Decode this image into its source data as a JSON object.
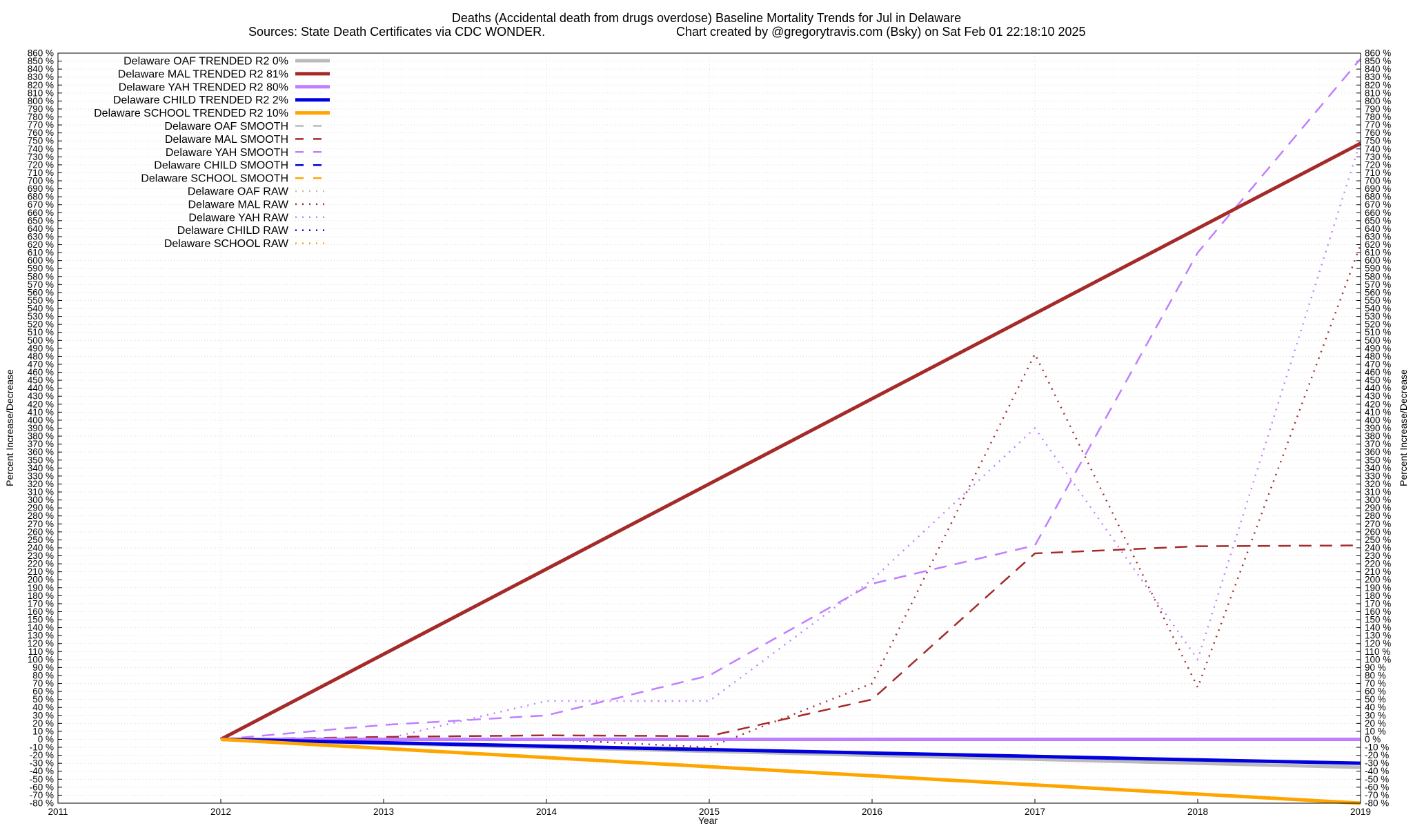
{
  "chart_data": {
    "type": "line",
    "title": "Deaths (Accidental death from drugs overdose)  Baseline Mortality Trends for Jul in Delaware",
    "subtitle_left": "Sources: State Death Certificates via CDC WONDER.",
    "subtitle_right": "Chart created by @gregorytravis.com (Bsky) on Sat Feb 01 22:18:10 2025",
    "xlabel": "Year",
    "ylabel": "Percent Increase/Decrease",
    "xlim": [
      2011,
      2019
    ],
    "ylim": [
      -80,
      860
    ],
    "y_tick_step": 10,
    "y_tick_suffix": " %",
    "x_ticks": [
      "2011",
      "2012",
      "2013",
      "2014",
      "2015",
      "2016",
      "2017",
      "2018",
      "2019"
    ],
    "grid": true,
    "legend_position": "top-left",
    "series": [
      {
        "name": "Delaware OAF TRENDED R2  0%",
        "style": "solid",
        "color": "#bbbbbb",
        "width": 5,
        "x": [
          2012,
          2019
        ],
        "y": [
          0,
          -35
        ]
      },
      {
        "name": "Delaware MAL TRENDED R2  81%",
        "style": "solid",
        "color": "#a52a2a",
        "width": 5,
        "x": [
          2012,
          2019
        ],
        "y": [
          0,
          747
        ]
      },
      {
        "name": "Delaware YAH TRENDED R2  80%",
        "style": "solid",
        "color": "#bf7fff",
        "width": 5,
        "x": [
          2012,
          2019
        ],
        "y": [
          0,
          0
        ]
      },
      {
        "name": "Delaware CHILD TRENDED R2  2%",
        "style": "solid",
        "color": "#0000e0",
        "width": 5,
        "x": [
          2012,
          2019
        ],
        "y": [
          0,
          -30
        ]
      },
      {
        "name": "Delaware SCHOOL TRENDED R2  10%",
        "style": "solid",
        "color": "#ffa500",
        "width": 5,
        "x": [
          2012,
          2019
        ],
        "y": [
          0,
          -80
        ]
      },
      {
        "name": "Delaware OAF SMOOTH",
        "style": "dash",
        "color": "#bbbbbb",
        "width": 2.5,
        "x": [
          2012,
          2019
        ],
        "y": [
          0,
          0
        ]
      },
      {
        "name": "Delaware MAL SMOOTH",
        "style": "dash",
        "color": "#a52a2a",
        "width": 2.5,
        "x": [
          2012,
          2013,
          2014,
          2015,
          2016,
          2017,
          2018,
          2019
        ],
        "y": [
          0,
          3,
          5,
          4,
          50,
          233,
          242,
          243
        ]
      },
      {
        "name": "Delaware YAH SMOOTH",
        "style": "dash",
        "color": "#bf7fff",
        "width": 2.5,
        "x": [
          2012,
          2013,
          2014,
          2015,
          2016,
          2017,
          2018,
          2019
        ],
        "y": [
          0,
          18,
          30,
          80,
          195,
          243,
          610,
          853
        ]
      },
      {
        "name": "Delaware CHILD SMOOTH",
        "style": "dash",
        "color": "#0000e0",
        "width": 2.5,
        "x": [
          2012,
          2019
        ],
        "y": [
          0,
          0
        ]
      },
      {
        "name": "Delaware SCHOOL SMOOTH",
        "style": "dash",
        "color": "#ffa500",
        "width": 2.5,
        "x": [
          2012,
          2019
        ],
        "y": [
          0,
          0
        ]
      },
      {
        "name": "Delaware OAF RAW",
        "style": "dot",
        "color": "#bbbbbb",
        "width": 2.5,
        "x": [
          2012,
          2019
        ],
        "y": [
          0,
          0
        ]
      },
      {
        "name": "Delaware MAL RAW",
        "style": "dot",
        "color": "#a52a2a",
        "width": 2.5,
        "x": [
          2012,
          2013,
          2014,
          2015,
          2016,
          2017,
          2018,
          2019
        ],
        "y": [
          0,
          0,
          0,
          -10,
          70,
          483,
          65,
          620
        ]
      },
      {
        "name": "Delaware YAH RAW",
        "style": "dot",
        "color": "#bf7fff",
        "width": 2.5,
        "x": [
          2012,
          2013,
          2014,
          2014.5,
          2015,
          2016,
          2017,
          2018,
          2019
        ],
        "y": [
          0,
          0,
          48,
          48,
          48,
          200,
          390,
          100,
          750
        ]
      },
      {
        "name": "Delaware CHILD RAW",
        "style": "dot",
        "color": "#0000e0",
        "width": 2.5,
        "x": [
          2012,
          2019
        ],
        "y": [
          0,
          0
        ]
      },
      {
        "name": "Delaware SCHOOL RAW",
        "style": "dot",
        "color": "#ffa500",
        "width": 2.5,
        "x": [
          2012,
          2019
        ],
        "y": [
          0,
          0
        ]
      }
    ]
  }
}
